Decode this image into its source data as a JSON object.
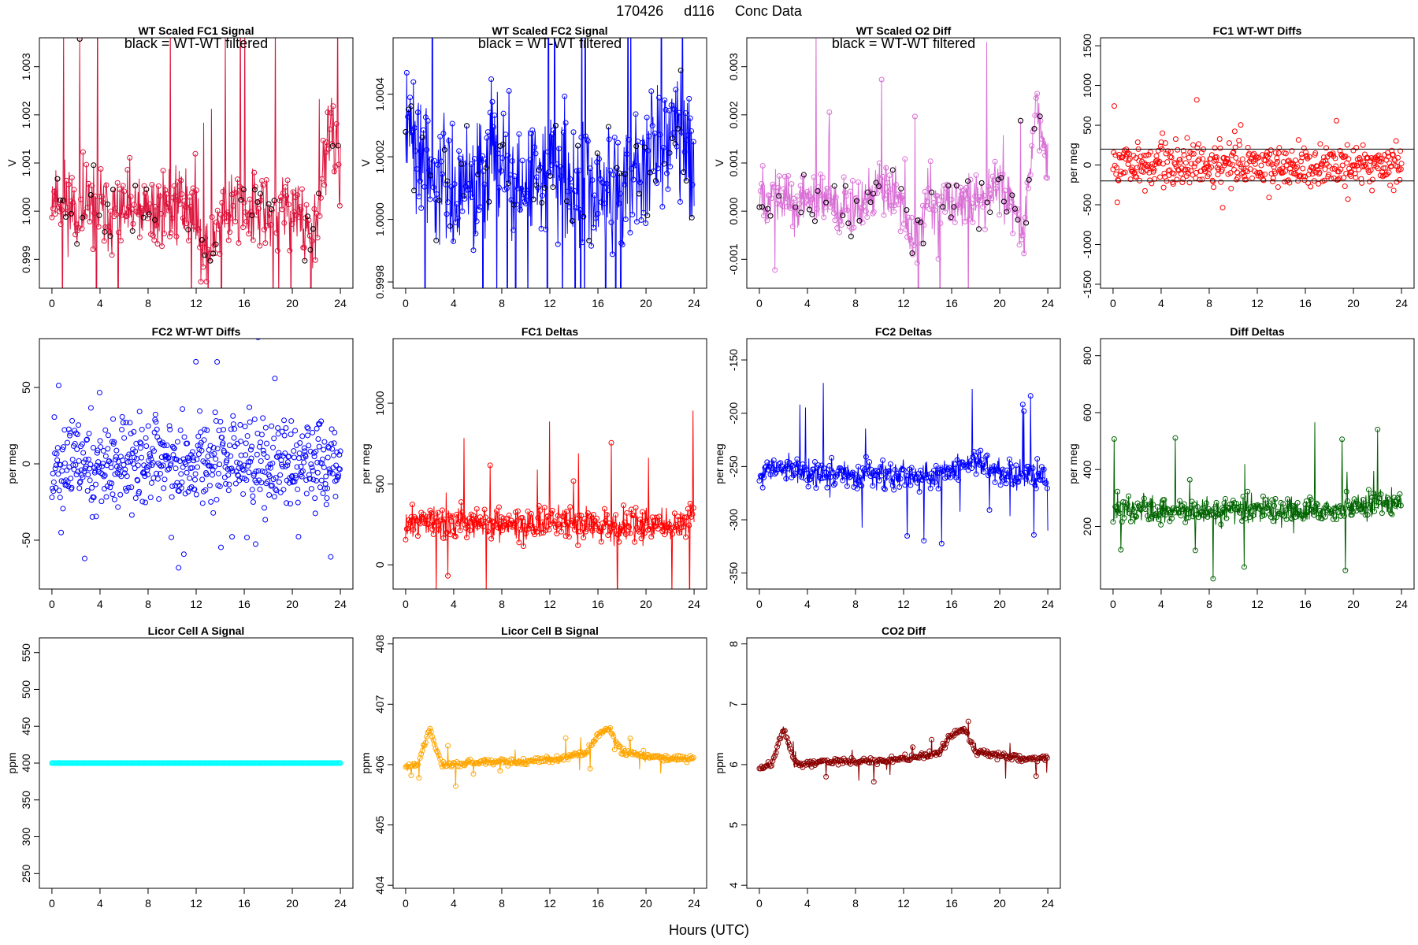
{
  "figure": {
    "title_parts": [
      "170426",
      "d116",
      "Conc Data"
    ],
    "xlabel": "Hours (UTC)"
  },
  "chart_data": [
    {
      "id": "p1",
      "type": "line",
      "title": "WT Scaled FC1 Signal",
      "annotation": "black = WT-WT filtered",
      "ylabel": "V",
      "xlim": [
        0,
        24
      ],
      "ylim": [
        0.9984,
        1.0036
      ],
      "xticks": [
        0,
        4,
        8,
        12,
        16,
        20,
        24
      ],
      "yticks": [
        0.999,
        1.0,
        1.001,
        1.002,
        1.003
      ],
      "ytick_labels": [
        "0.999",
        "1.000",
        "1.001",
        "1.002",
        "1.003"
      ],
      "color": "#dc143c",
      "overlay_color": "#000000",
      "base": 1.0002,
      "amplitude": 0.0006,
      "seed": 11,
      "x": [
        0,
        2,
        4,
        6,
        8,
        10,
        12,
        13,
        14,
        16,
        18,
        20,
        22,
        23,
        24
      ],
      "y": [
        1.0004,
        1.0001,
        1.0,
        1.0,
        0.9999,
        1.0002,
        1.0,
        0.999,
        1.0,
        1.0001,
        0.9999,
        1.0001,
        0.9994,
        1.0018,
        1.0008
      ]
    },
    {
      "id": "p2",
      "type": "line",
      "title": "WT Scaled FC2 Signal",
      "annotation": "black = WT-WT filtered",
      "ylabel": "V",
      "xlim": [
        0,
        24
      ],
      "ylim": [
        0.99978,
        1.00058
      ],
      "xticks": [
        0,
        4,
        8,
        12,
        16,
        20,
        24
      ],
      "yticks": [
        0.9998,
        1.0,
        1.0002,
        1.0004
      ],
      "ytick_labels": [
        "0.9998",
        "1.0000",
        "1.0002",
        "1.0004"
      ],
      "color": "#0000ff",
      "overlay_color": "#000000",
      "base": 1.0002,
      "amplitude": 0.00015,
      "seed": 22,
      "x": [
        0,
        2,
        4,
        6,
        8,
        10,
        12,
        14,
        16,
        18,
        20,
        22,
        24
      ],
      "y": [
        1.0003,
        1.0002,
        1.0001,
        1.0001,
        1.0002,
        1.0001,
        1.0002,
        1.0001,
        1.0001,
        1.0001,
        1.0002,
        1.0003,
        1.0002
      ]
    },
    {
      "id": "p3",
      "type": "line",
      "title": "WT Scaled O2 Diff",
      "annotation": "black = WT-WT filtered",
      "ylabel": "V",
      "xlim": [
        0,
        24
      ],
      "ylim": [
        -0.0016,
        0.0036
      ],
      "xticks": [
        0,
        4,
        8,
        12,
        16,
        20,
        24
      ],
      "yticks": [
        -0.001,
        0.0,
        0.001,
        0.002,
        0.003
      ],
      "ytick_labels": [
        "-0.001",
        "0.000",
        "0.001",
        "0.002",
        "0.003"
      ],
      "color": "#da70d6",
      "overlay_color": "#000000",
      "base": 0.0002,
      "amplitude": 0.0004,
      "seed": 33,
      "x": [
        0,
        2,
        4,
        6,
        8,
        10,
        12,
        13,
        14,
        16,
        18,
        20,
        22,
        23,
        24
      ],
      "y": [
        0.0004,
        0.0003,
        0.0002,
        0.0001,
        0.0,
        0.0005,
        0.0002,
        -0.0008,
        0.0003,
        0.0001,
        0.0003,
        0.0005,
        -0.0004,
        0.0022,
        0.0008
      ]
    },
    {
      "id": "p4",
      "type": "scatter",
      "title": "FC1 WT-WT Diffs",
      "ylabel": "per meg",
      "xlim": [
        0,
        24
      ],
      "ylim": [
        -1550,
        1600
      ],
      "xticks": [
        0,
        4,
        8,
        12,
        16,
        20,
        24
      ],
      "yticks": [
        -1500,
        -1000,
        -500,
        0,
        500,
        1000,
        1500
      ],
      "ytick_labels": [
        "-1500",
        "-1000",
        "-500",
        "0",
        "500",
        "1000",
        "1500"
      ],
      "color": "#ff0000",
      "hlines": [
        200,
        -200
      ],
      "base": 0,
      "amplitude": 260,
      "seed": 44,
      "n": 480
    },
    {
      "id": "p5",
      "type": "scatter",
      "title": "FC2 WT-WT Diffs",
      "ylabel": "per meg",
      "xlim": [
        0,
        24
      ],
      "ylim": [
        -82,
        82
      ],
      "xticks": [
        0,
        4,
        8,
        12,
        16,
        20,
        24
      ],
      "yticks": [
        -50,
        0,
        50
      ],
      "ytick_labels": [
        "-50",
        "0",
        "50"
      ],
      "color": "#0000ff",
      "base": 0,
      "amplitude": 26,
      "seed": 55,
      "n": 600
    },
    {
      "id": "p6",
      "type": "line",
      "title": "FC1 Deltas",
      "ylabel": "per meg",
      "xlim": [
        0,
        24
      ],
      "ylim": [
        -150,
        1400
      ],
      "xticks": [
        0,
        4,
        8,
        12,
        16,
        20,
        24
      ],
      "yticks": [
        0,
        500,
        1000
      ],
      "ytick_labels": [
        "0",
        "500",
        "1000"
      ],
      "color": "#ff0000",
      "base": 260,
      "amplitude": 70,
      "seed": 66,
      "x": [
        0,
        2,
        4,
        6,
        8,
        10,
        12,
        14,
        16,
        18,
        20,
        22,
        24
      ],
      "y": [
        250,
        280,
        260,
        260,
        240,
        250,
        270,
        260,
        250,
        240,
        260,
        250,
        300
      ]
    },
    {
      "id": "p7",
      "type": "line",
      "title": "FC2 Deltas",
      "ylabel": "per meg",
      "xlim": [
        0,
        24
      ],
      "ylim": [
        -365,
        -130
      ],
      "xticks": [
        0,
        4,
        8,
        12,
        16,
        20,
        24
      ],
      "yticks": [
        -350,
        -300,
        -250,
        -200,
        -150
      ],
      "ytick_labels": [
        "-350",
        "-300",
        "-250",
        "-200",
        "-150"
      ],
      "color": "#0000ff",
      "base": -258,
      "amplitude": 9,
      "seed": 77,
      "x": [
        0,
        2,
        4,
        6,
        8,
        10,
        12,
        14,
        16,
        18,
        20,
        22,
        24
      ],
      "y": [
        -258,
        -250,
        -258,
        -258,
        -258,
        -258,
        -258,
        -258,
        -255,
        -245,
        -255,
        -258,
        -258
      ]
    },
    {
      "id": "p8",
      "type": "line",
      "title": "Diff Deltas",
      "ylabel": "per meg",
      "xlim": [
        0,
        24
      ],
      "ylim": [
        -20,
        860
      ],
      "xticks": [
        0,
        4,
        8,
        12,
        16,
        20,
        24
      ],
      "yticks": [
        200,
        400,
        600,
        800
      ],
      "ytick_labels": [
        "200",
        "400",
        "600",
        "800"
      ],
      "color": "#006400",
      "base": 255,
      "amplitude": 35,
      "seed": 88,
      "x": [
        0,
        2,
        4,
        6,
        8,
        10,
        12,
        14,
        16,
        18,
        20,
        22,
        24
      ],
      "y": [
        260,
        260,
        250,
        255,
        250,
        255,
        260,
        255,
        250,
        255,
        270,
        280,
        290
      ]
    },
    {
      "id": "p9",
      "type": "line",
      "title": "Licor Cell A Signal",
      "ylabel": "ppm",
      "xlim": [
        0,
        24
      ],
      "ylim": [
        230,
        570
      ],
      "xticks": [
        0,
        4,
        8,
        12,
        16,
        20,
        24
      ],
      "yticks": [
        250,
        300,
        350,
        400,
        450,
        500,
        550
      ],
      "ytick_labels": [
        "250",
        "300",
        "350",
        "400",
        "450",
        "500",
        "550"
      ],
      "color": "#00ffff",
      "base": 400,
      "amplitude": 0,
      "seed": 99,
      "x": [
        0,
        24
      ],
      "y": [
        400,
        400
      ]
    },
    {
      "id": "p10",
      "type": "line",
      "title": "Licor Cell B Signal",
      "ylabel": "ppm",
      "xlim": [
        0,
        24
      ],
      "ylim": [
        403.95,
        408.1
      ],
      "xticks": [
        0,
        4,
        8,
        12,
        16,
        20,
        24
      ],
      "yticks": [
        404,
        405,
        406,
        407,
        408
      ],
      "ytick_labels": [
        "404",
        "405",
        "406",
        "407",
        "408"
      ],
      "color": "#ffa500",
      "base": 406.05,
      "amplitude": 0.04,
      "seed": 101,
      "x": [
        0,
        1,
        2,
        3,
        4,
        6,
        8,
        10,
        12,
        13,
        14,
        15,
        16,
        17,
        18,
        20,
        22,
        24
      ],
      "y": [
        405.95,
        406.0,
        406.6,
        406.0,
        406.0,
        406.05,
        406.05,
        406.05,
        406.1,
        406.1,
        406.15,
        406.2,
        406.5,
        406.6,
        406.2,
        406.15,
        406.1,
        406.1
      ]
    },
    {
      "id": "p11",
      "type": "line",
      "title": "CO2 Diff",
      "ylabel": "ppm",
      "xlim": [
        0,
        24
      ],
      "ylim": [
        3.95,
        8.1
      ],
      "xticks": [
        0,
        4,
        8,
        12,
        16,
        20,
        24
      ],
      "yticks": [
        4,
        5,
        6,
        7,
        8
      ],
      "ytick_labels": [
        "4",
        "5",
        "6",
        "7",
        "8"
      ],
      "color": "#8b0000",
      "base": 6.05,
      "amplitude": 0.04,
      "seed": 112,
      "x": [
        0,
        1,
        2,
        3,
        4,
        6,
        8,
        10,
        12,
        13,
        14,
        15,
        16,
        17,
        18,
        20,
        22,
        24
      ],
      "y": [
        5.95,
        6.0,
        6.6,
        6.0,
        6.0,
        6.05,
        6.05,
        6.05,
        6.1,
        6.1,
        6.15,
        6.2,
        6.5,
        6.6,
        6.2,
        6.15,
        6.1,
        6.1
      ]
    }
  ]
}
